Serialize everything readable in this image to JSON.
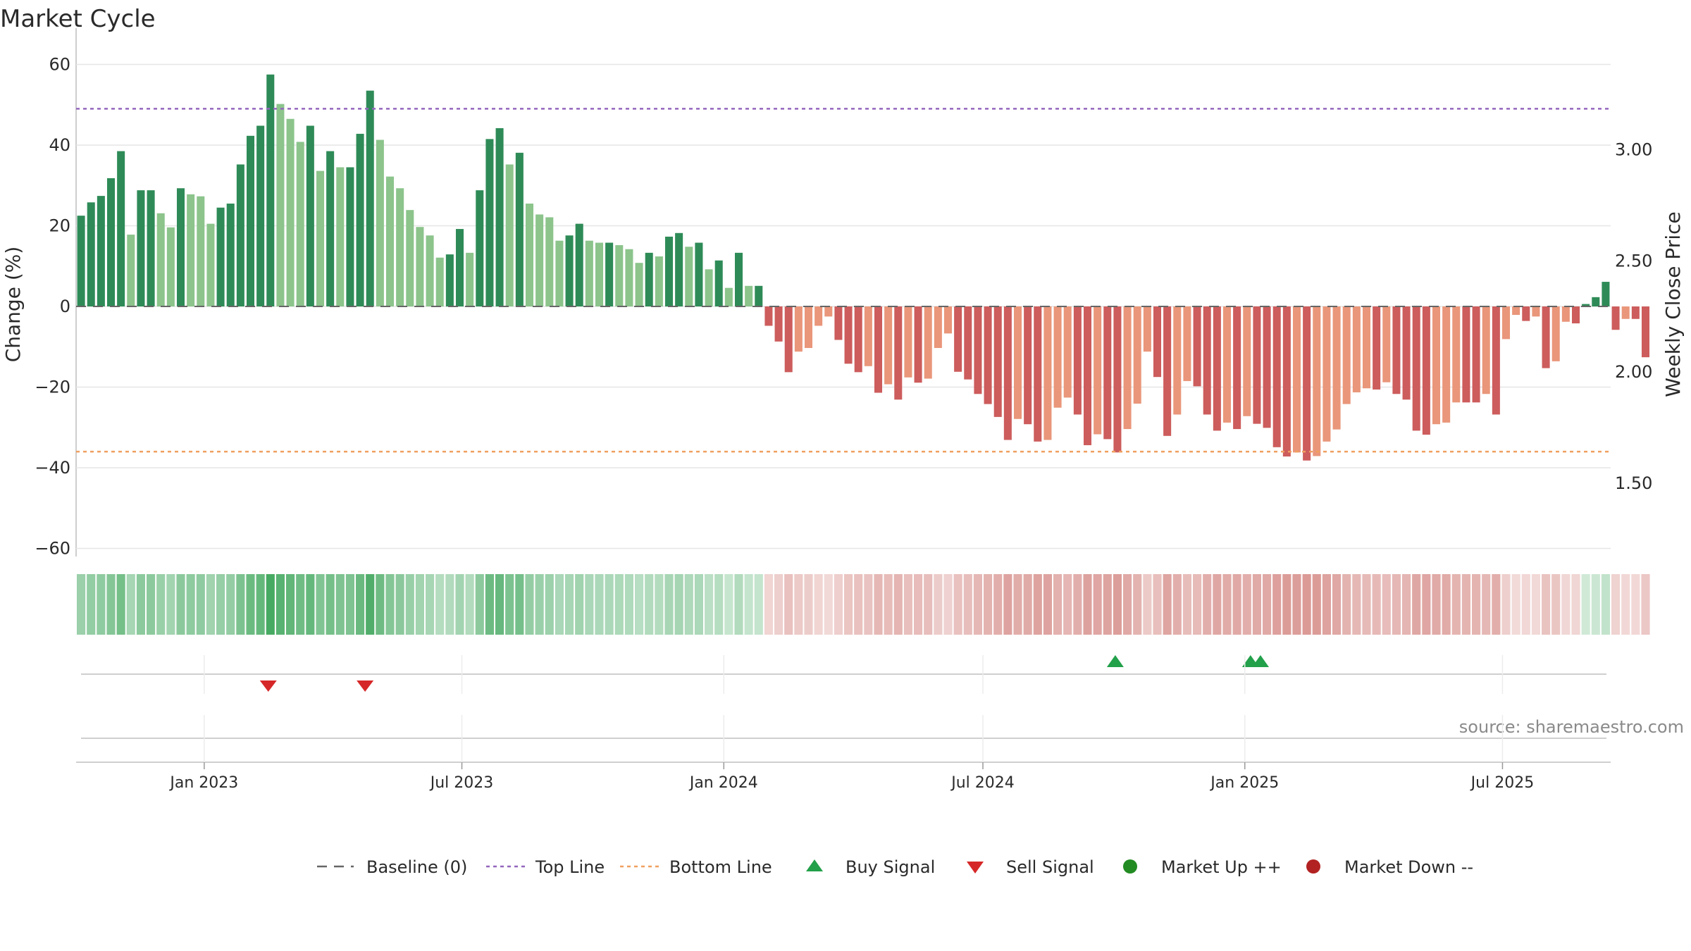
{
  "chart_data": {
    "type": "bar",
    "title": "Market Cycle",
    "ylabel": "Change (%)",
    "y2label": "Weekly Close Price",
    "source": "source: sharemaestro.com",
    "ylim": [
      -62,
      62
    ],
    "y2lim": [
      1.17,
      3.42
    ],
    "y_ticks": [
      60,
      40,
      20,
      0,
      -20,
      -40,
      -60
    ],
    "y_tick_labels": [
      "60",
      "40",
      "20",
      "0",
      "−20",
      "−40",
      "−60"
    ],
    "y2_ticks": [
      3.0,
      2.5,
      2.0,
      1.5
    ],
    "y2_tick_labels": [
      "3.00",
      "2.50",
      "2.00",
      "1.50"
    ],
    "x_start": "2022-10-03",
    "x_end": "2025-09-15",
    "x_ticks": [
      {
        "date": "2023-01-01",
        "label": "Jan 2023"
      },
      {
        "date": "2023-07-01",
        "label": "Jul 2023"
      },
      {
        "date": "2024-01-01",
        "label": "Jan 2024"
      },
      {
        "date": "2024-07-01",
        "label": "Jul 2024"
      },
      {
        "date": "2025-01-01",
        "label": "Jan 2025"
      },
      {
        "date": "2025-07-01",
        "label": "Jul 2025"
      }
    ],
    "first_week": "2022-10-03",
    "week_step_days": 7,
    "values": [
      22.5,
      25.8,
      27.4,
      31.8,
      38.5,
      17.8,
      28.8,
      28.8,
      23.1,
      19.6,
      29.3,
      27.8,
      27.3,
      20.5,
      24.5,
      25.5,
      35.2,
      42.3,
      44.8,
      57.5,
      50.2,
      46.5,
      40.8,
      44.8,
      33.6,
      38.5,
      34.5,
      34.5,
      42.8,
      53.5,
      41.3,
      32.2,
      29.3,
      23.9,
      19.7,
      17.6,
      12.1,
      12.9,
      19.2,
      13.3,
      28.8,
      41.5,
      44.2,
      35.2,
      38.1,
      25.5,
      22.8,
      22.1,
      16.3,
      17.6,
      20.5,
      16.3,
      15.8,
      15.8,
      15.2,
      14.2,
      10.8,
      13.3,
      12.4,
      17.3,
      18.2,
      14.8,
      15.8,
      9.2,
      11.4,
      4.6,
      13.3,
      5.1,
      5.1,
      -4.8,
      -8.7,
      -16.3,
      -11.2,
      -10.3,
      -4.8,
      -2.5,
      -8.3,
      -14.2,
      -16.3,
      -14.8,
      -21.4,
      -19.3,
      -23.1,
      -17.6,
      -18.9,
      -17.9,
      -10.3,
      -6.7,
      -16.2,
      -18.1,
      -21.7,
      -24.2,
      -27.4,
      -33.1,
      -27.9,
      -29.2,
      -33.5,
      -33.1,
      -25.1,
      -22.6,
      -26.8,
      -34.4,
      -31.7,
      -32.9,
      -36.2,
      -30.4,
      -24.1,
      -11.2,
      -17.5,
      -32.1,
      -26.8,
      -18.5,
      -19.8,
      -26.8,
      -30.8,
      -28.8,
      -30.4,
      -27.2,
      -29.1,
      -30.1,
      -34.9,
      -37.2,
      -36.2,
      -38.2,
      -37.1,
      -33.5,
      -30.5,
      -24.2,
      -21.3,
      -20.3,
      -20.6,
      -18.8,
      -21.7,
      -23.1,
      -30.8,
      -31.8,
      -29.2,
      -28.8,
      -23.8,
      -23.8,
      -23.8,
      -21.7,
      -26.8,
      -8.1,
      -2.1,
      -3.6,
      -2.5,
      -15.3,
      -13.6,
      -3.8,
      -4.2,
      0.6,
      2.3,
      6.1,
      -5.8,
      -3.1,
      -3.1,
      -12.6
    ],
    "top_line": 49,
    "bottom_line": -36,
    "buy_signals": [
      "2024-10-02",
      "2025-01-05",
      "2025-01-12"
    ],
    "sell_signals": [
      "2023-02-15",
      "2023-04-24"
    ],
    "legend_position": "bottom",
    "legend": [
      {
        "name": "Baseline (0)",
        "kind": "dash",
        "color": "#666666"
      },
      {
        "name": "Top Line",
        "kind": "dot",
        "color": "#9467bd"
      },
      {
        "name": "Bottom Line",
        "kind": "dot",
        "color": "#f0a060"
      },
      {
        "name": "Buy Signal",
        "kind": "tri-up",
        "color": "#22a04a"
      },
      {
        "name": "Sell Signal",
        "kind": "tri-down",
        "color": "#d62728"
      },
      {
        "name": "Market Up ++",
        "kind": "circle",
        "color": "#228b22"
      },
      {
        "name": "Market Down --",
        "kind": "circle",
        "color": "#b22222"
      }
    ],
    "colors": {
      "up_strong": "#2e8b57",
      "up_weak": "#8cc48c",
      "down_strong": "#cd5c5c",
      "down_weak": "#e9967a",
      "grid": "#e6e6e6",
      "heat_up": "#3da55a",
      "heat_down": "#c96a64"
    },
    "grid": true
  }
}
